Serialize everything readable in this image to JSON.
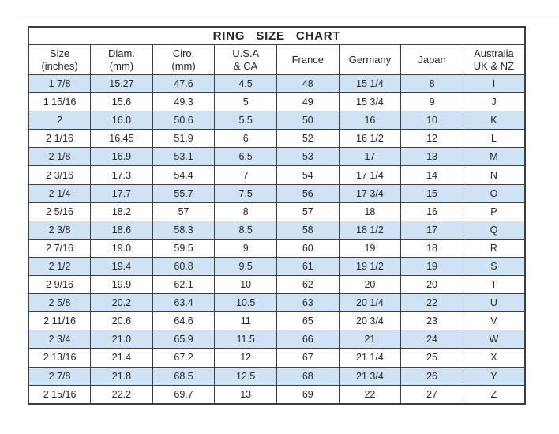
{
  "chart_data": {
    "type": "table",
    "title": "RING  SIZE  CHART",
    "columns": [
      [
        "Size",
        "(inches)"
      ],
      [
        "Diam.",
        "(mm)"
      ],
      [
        "Ciro.",
        "(mm)"
      ],
      [
        "U.S.A",
        "& CA"
      ],
      [
        "France"
      ],
      [
        "Germany"
      ],
      [
        "Japan"
      ],
      [
        "Australia",
        "UK & NZ"
      ]
    ],
    "rows": [
      [
        "1 7/8",
        "15.27",
        "47.6",
        "4.5",
        "48",
        "15 1/4",
        "8",
        "I"
      ],
      [
        "1 15/16",
        "15.6",
        "49.3",
        "5",
        "49",
        "15 3/4",
        "9",
        "J"
      ],
      [
        "2",
        "16.0",
        "50.6",
        "5.5",
        "50",
        "16",
        "10",
        "K"
      ],
      [
        "2 1/16",
        "16.45",
        "51.9",
        "6",
        "52",
        "16 1/2",
        "12",
        "L"
      ],
      [
        "2 1/8",
        "16.9",
        "53.1",
        "6.5",
        "53",
        "17",
        "13",
        "M"
      ],
      [
        "2 3/16",
        "17.3",
        "54.4",
        "7",
        "54",
        "17 1/4",
        "14",
        "N"
      ],
      [
        "2 1/4",
        "17.7",
        "55.7",
        "7.5",
        "56",
        "17 3/4",
        "15",
        "O"
      ],
      [
        "2 5/16",
        "18.2",
        "57",
        "8",
        "57",
        "18",
        "16",
        "P"
      ],
      [
        "2 3/8",
        "18.6",
        "58.3",
        "8.5",
        "58",
        "18 1/2",
        "17",
        "Q"
      ],
      [
        "2 7/16",
        "19.0",
        "59.5",
        "9",
        "60",
        "19",
        "18",
        "R"
      ],
      [
        "2 1/2",
        "19.4",
        "60.8",
        "9.5",
        "61",
        "19 1/2",
        "19",
        "S"
      ],
      [
        "2 9/16",
        "19.9",
        "62.1",
        "10",
        "62",
        "20",
        "20",
        "T"
      ],
      [
        "2 5/8",
        "20.2",
        "63.4",
        "10.5",
        "63",
        "20 1/4",
        "22",
        "U"
      ],
      [
        "2 11/16",
        "20.6",
        "64.6",
        "11",
        "65",
        "20 3/4",
        "23",
        "V"
      ],
      [
        "2 3/4",
        "21.0",
        "65.9",
        "11.5",
        "66",
        "21",
        "24",
        "W"
      ],
      [
        "2 13/16",
        "21.4",
        "67.2",
        "12",
        "67",
        "21 1/4",
        "25",
        "X"
      ],
      [
        "2 7/8",
        "21.8",
        "68.5",
        "12.5",
        "68",
        "21 3/4",
        "26",
        "Y"
      ],
      [
        "2 15/16",
        "22.2",
        "69.7",
        "13",
        "69",
        "22",
        "27",
        "Z"
      ]
    ],
    "layout": {
      "stripe_pattern": "odd data rows highlighted",
      "column_count": 8,
      "row_count": 18
    },
    "colors": {
      "stripe": "#cfe3f5",
      "border": "#3f3f3f",
      "text": "#262626",
      "background": "#ffffff"
    }
  }
}
